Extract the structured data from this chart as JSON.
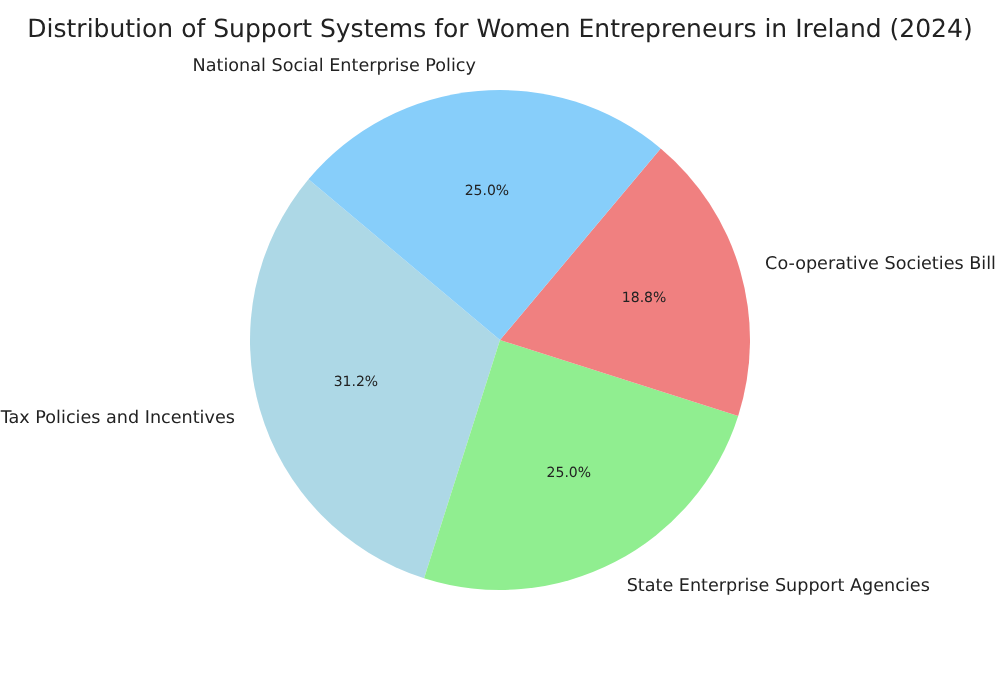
{
  "chart_data": {
    "type": "pie",
    "title": "Distribution of Support Systems for Women Entrepreneurs in Ireland (2024)",
    "categories": [
      "Tax Policies and Incentives",
      "State Enterprise Support Agencies",
      "Co-operative Societies Bill",
      "National Social Enterprise Policy"
    ],
    "values": [
      31.2,
      25.0,
      18.8,
      25.0
    ],
    "colors": [
      "#add8e6",
      "#90ee90",
      "#f08080",
      "#87cefa"
    ],
    "value_labels": [
      "31.2%",
      "25.0%",
      "18.8%",
      "25.0%"
    ],
    "legend": false
  }
}
